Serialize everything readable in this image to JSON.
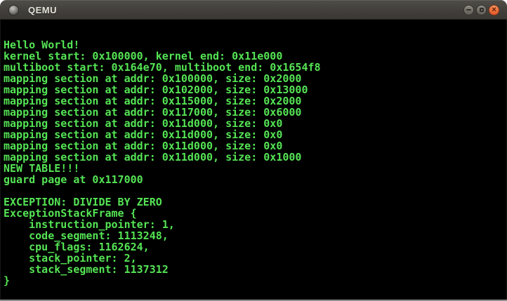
{
  "window": {
    "title": "QEMU",
    "icon_name": "qemu-window-orb-icon",
    "controls": {
      "minimize_label": "minimize",
      "maximize_label": "maximize",
      "close_label": "close",
      "close_glyph": "✕"
    },
    "colors": {
      "titlebar": "#423f3b",
      "close_button": "#e2592a",
      "button_gray": "#6e6a63"
    }
  },
  "terminal": {
    "colors": {
      "text": "#55e455",
      "background": "#000000"
    },
    "lines": [
      "Hello World!",
      "kernel start: 0x100000, kernel end: 0x11e000",
      "multiboot start: 0x164e70, multiboot end: 0x1654f8",
      "mapping section at addr: 0x100000, size: 0x2000",
      "mapping section at addr: 0x102000, size: 0x13000",
      "mapping section at addr: 0x115000, size: 0x2000",
      "mapping section at addr: 0x117000, size: 0x6000",
      "mapping section at addr: 0x11d000, size: 0x0",
      "mapping section at addr: 0x11d000, size: 0x0",
      "mapping section at addr: 0x11d000, size: 0x0",
      "mapping section at addr: 0x11d000, size: 0x1000",
      "NEW TABLE!!!",
      "guard page at 0x117000",
      "",
      "EXCEPTION: DIVIDE BY ZERO",
      "ExceptionStackFrame {",
      "    instruction_pointer: 1,",
      "    code_segment: 1113248,",
      "    cpu_flags: 1162624,",
      "    stack_pointer: 2,",
      "    stack_segment: 1137312",
      "}"
    ]
  }
}
